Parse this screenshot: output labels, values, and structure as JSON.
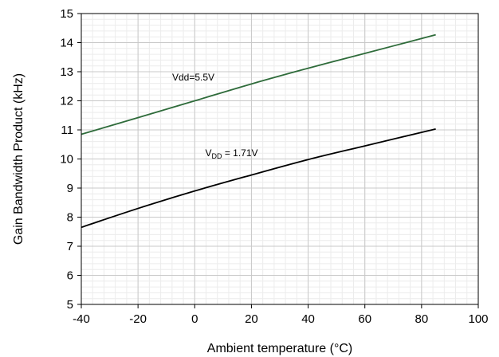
{
  "chart_data": {
    "type": "line",
    "title": "",
    "xlabel": "Ambient temperature (°C)",
    "ylabel": "Gain Bandwidth Product (kHz)",
    "xlim": [
      -40,
      100
    ],
    "ylim": [
      5,
      15
    ],
    "x_ticks": [
      -40,
      -20,
      0,
      20,
      40,
      60,
      80,
      100
    ],
    "y_ticks": [
      5,
      6,
      7,
      8,
      9,
      10,
      11,
      12,
      13,
      14,
      15
    ],
    "x_tick_labels": [
      "-40",
      "-20",
      "0",
      "20",
      "40",
      "60",
      "80",
      "100"
    ],
    "y_tick_labels": [
      "5",
      "6",
      "7",
      "8",
      "9",
      "10",
      "11",
      "12",
      "13",
      "14",
      "15"
    ],
    "grid": true,
    "legend": "none",
    "series": [
      {
        "color": "#2e6b3a",
        "x": [
          -40,
          -20,
          0,
          20,
          40,
          60,
          85
        ],
        "y": [
          10.85,
          11.42,
          12.0,
          12.58,
          13.12,
          13.63,
          14.27
        ]
      },
      {
        "color": "#000000",
        "x": [
          -40,
          -20,
          0,
          20,
          40,
          60,
          85
        ],
        "y": [
          7.65,
          8.3,
          8.9,
          9.45,
          9.98,
          10.45,
          11.03
        ]
      }
    ],
    "annotations": [
      {
        "text": "Vdd=5.5V",
        "x": -0.5,
        "y": 12.7
      },
      {
        "text_main": "V",
        "text_sub": "DD",
        "text_rest": " = 1.71V",
        "x": 13,
        "y": 10.1
      }
    ]
  }
}
